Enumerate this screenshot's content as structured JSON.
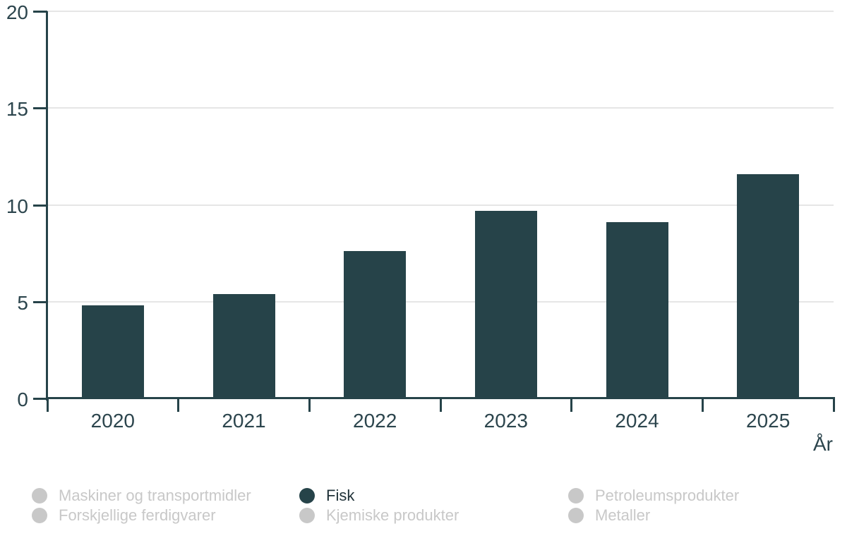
{
  "chart_data": {
    "type": "bar",
    "title": "",
    "categories": [
      "2020",
      "2021",
      "2022",
      "2023",
      "2024",
      "2025"
    ],
    "series": [
      {
        "name": "Fisk",
        "values": [
          4.8,
          5.4,
          7.6,
          9.7,
          9.1,
          11.6
        ]
      }
    ],
    "xlabel": "År",
    "ylabel": "",
    "ylim": [
      0,
      20
    ],
    "yticks": [
      0,
      5,
      10,
      15,
      20
    ],
    "grid": true,
    "legend_position": "bottom"
  },
  "colors": {
    "bar": "#264349",
    "axis": "#264349",
    "grid": "#e6e6e6",
    "tick_label": "#2c454d",
    "legend_active_text": "#1f3138",
    "legend_disabled": "#c8c8c8",
    "background": "#ffffff"
  },
  "legend": {
    "items": [
      {
        "label": "Maskiner og transportmidler",
        "active": false
      },
      {
        "label": "Fisk",
        "active": true
      },
      {
        "label": "Petroleumsprodukter",
        "active": false
      },
      {
        "label": "Forskjellige ferdigvarer",
        "active": false
      },
      {
        "label": "Kjemiske produkter",
        "active": false
      },
      {
        "label": "Metaller",
        "active": false
      }
    ]
  }
}
